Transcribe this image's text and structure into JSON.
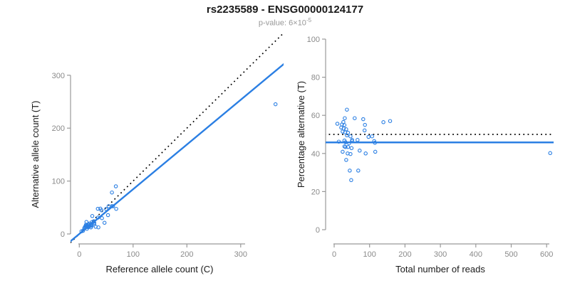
{
  "header": {
    "title": "rs2235589 - ENSG00000124177",
    "pvalue": {
      "label": "p-value:",
      "mantissa": "6",
      "times": "×",
      "base": "10",
      "exponent": "-5"
    }
  },
  "colors": {
    "accent_blue": "#2B7FE3",
    "reference_line_black": "#000000",
    "axis_gray": "#999999",
    "tick_text_gray": "#8a8a8a",
    "title_text": "#1a1a1a",
    "subtitle_gray": "#979797"
  },
  "chart_data": [
    {
      "type": "scatter",
      "panel": "left",
      "xlabel": "Reference allele count (C)",
      "ylabel": "Alternative allele count (T)",
      "xlim": [
        0,
        378
      ],
      "ylim": [
        0,
        394
      ],
      "xticks": [
        0,
        100,
        200,
        300
      ],
      "yticks": [
        0,
        100,
        200,
        300
      ],
      "grid": false,
      "legend": null,
      "lines": [
        {
          "name": "identity-line",
          "slope": 1,
          "intercept": 0,
          "style": "dotted",
          "color": "#000000"
        },
        {
          "name": "fit-line",
          "slope": 0.845,
          "intercept": 0,
          "style": "solid",
          "color": "#2B7FE3"
        }
      ],
      "points": [
        [
          13.3,
          22.7
        ],
        [
          12.5,
          17.6
        ],
        [
          24.1,
          33.9
        ],
        [
          34.4,
          47.6
        ],
        [
          60.6,
          78.4
        ],
        [
          67.9,
          90.1
        ],
        [
          11.3,
          14.7
        ],
        [
          9.9,
          12.1
        ],
        [
          13.1,
          15.9
        ],
        [
          9.3,
          10.7
        ],
        [
          12.7,
          14.3
        ],
        [
          16.1,
          17.9
        ],
        [
          39.2,
          47.9
        ],
        [
          41.2,
          44.8
        ],
        [
          11.6,
          12.4
        ],
        [
          15.2,
          15.8
        ],
        [
          19.1,
          19.9
        ],
        [
          18.2,
          17.8
        ],
        [
          23.5,
          22.5
        ],
        [
          49.8,
          47.2
        ],
        [
          54.6,
          52.4
        ],
        [
          27.0,
          24.0
        ],
        [
          34.9,
          31.1
        ],
        [
          15.4,
          13.6
        ],
        [
          26.8,
          23.3
        ],
        [
          60.5,
          52.5
        ],
        [
          62.6,
          52.4
        ],
        [
          17.3,
          14.7
        ],
        [
          23.0,
          19.0
        ],
        [
          16.3,
          12.7
        ],
        [
          18.1,
          13.9
        ],
        [
          22.1,
          16.9
        ],
        [
          28.0,
          21.0
        ],
        [
          42.1,
          29.9
        ],
        [
          14.2,
          9.8
        ],
        [
          68.6,
          47.4
        ],
        [
          22.8,
          15.2
        ],
        [
          27.7,
          18.3
        ],
        [
          53.4,
          35.6
        ],
        [
          21.6,
          12.4
        ],
        [
          30.4,
          13.6
        ],
        [
          46.9,
          21.1
        ],
        [
          35.5,
          12.5
        ],
        [
          4.0,
          5.0
        ],
        [
          7.0,
          6.0
        ],
        [
          364.8,
          245.2
        ]
      ]
    },
    {
      "type": "scatter",
      "panel": "right",
      "xlabel": "Total number of reads",
      "ylabel": "Percentage alternative (T)",
      "xlim": [
        0,
        620
      ],
      "ylim": [
        0,
        100
      ],
      "xticks": [
        0,
        100,
        200,
        300,
        400,
        500,
        600
      ],
      "yticks": [
        0,
        20,
        40,
        60,
        80,
        100
      ],
      "grid": false,
      "legend": null,
      "lines": [
        {
          "name": "expected-50pct-line",
          "y": 50,
          "style": "dotted",
          "color": "#000000"
        },
        {
          "name": "fit-line",
          "y": 45.8,
          "style": "solid",
          "color": "#2B7FE3"
        }
      ],
      "points": [
        [
          36,
          63
        ],
        [
          30,
          58.5
        ],
        [
          58,
          58.5
        ],
        [
          82,
          58
        ],
        [
          139,
          56.4
        ],
        [
          158,
          57
        ],
        [
          26,
          56.5
        ],
        [
          22,
          55.2
        ],
        [
          29,
          54.9
        ],
        [
          20,
          53.6
        ],
        [
          27,
          53.1
        ],
        [
          34,
          52.7
        ],
        [
          87,
          55
        ],
        [
          86,
          52.1
        ],
        [
          24,
          51.5
        ],
        [
          31,
          51.1
        ],
        [
          39,
          50.9
        ],
        [
          36,
          49.5
        ],
        [
          46,
          49
        ],
        [
          97,
          48.7
        ],
        [
          107,
          49
        ],
        [
          51,
          47.1
        ],
        [
          66,
          47.1
        ],
        [
          29,
          46.8
        ],
        [
          50,
          46.5
        ],
        [
          113,
          46.5
        ],
        [
          115,
          45.6
        ],
        [
          32,
          45.9
        ],
        [
          42,
          45.3
        ],
        [
          29,
          43.7
        ],
        [
          32,
          43.4
        ],
        [
          39,
          43.4
        ],
        [
          49,
          42.8
        ],
        [
          72,
          41.5
        ],
        [
          24,
          40.9
        ],
        [
          116,
          40.9
        ],
        [
          38,
          40
        ],
        [
          46,
          39.7
        ],
        [
          89,
          40
        ],
        [
          34,
          36.6
        ],
        [
          44,
          31
        ],
        [
          68,
          31
        ],
        [
          48,
          26
        ],
        [
          9,
          55.6
        ],
        [
          13,
          46.2
        ],
        [
          610,
          40.2
        ]
      ]
    }
  ]
}
